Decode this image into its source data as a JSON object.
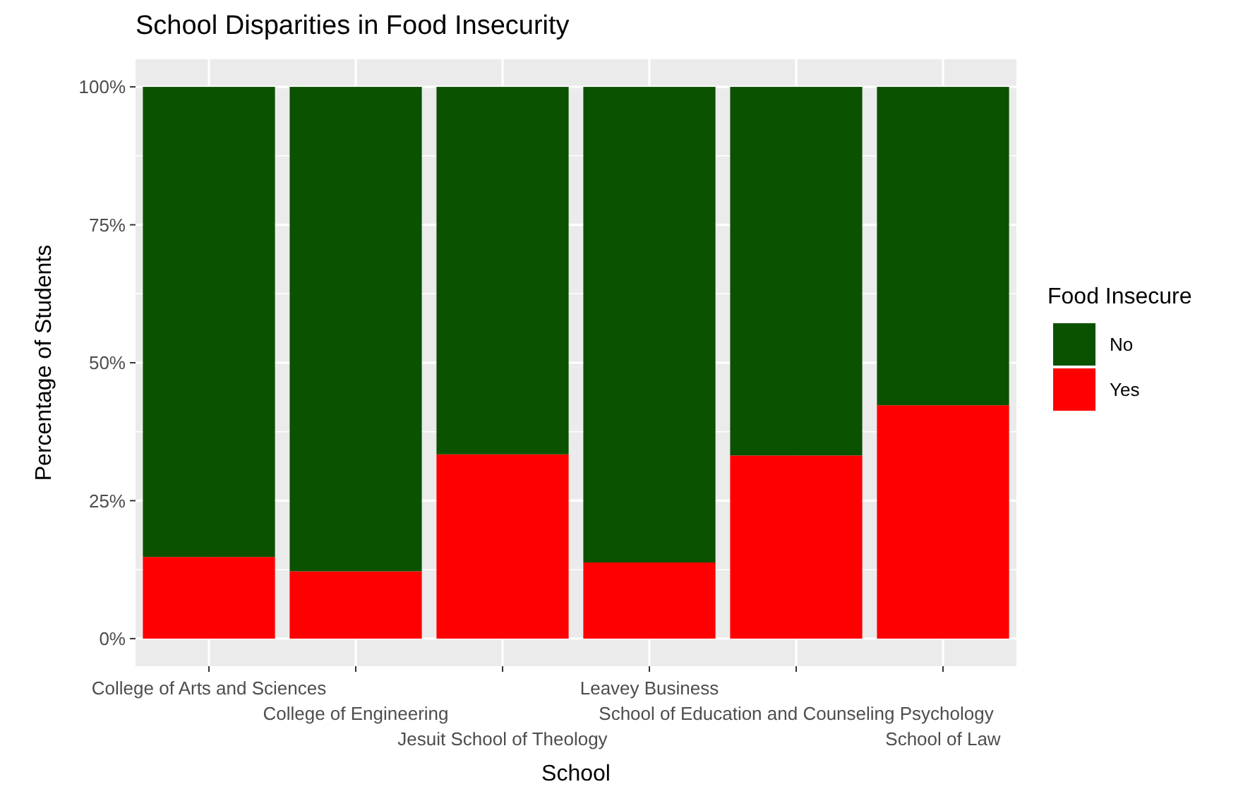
{
  "chart_data": {
    "type": "bar",
    "title": "School Disparities in Food Insecurity",
    "xlabel": "School",
    "ylabel": "Percentage of Students",
    "legend_title": "Food Insecure",
    "categories": [
      "College of Arts and Sciences",
      "College of Engineering",
      "Jesuit School of Theology",
      "Leavey Business",
      "School of Education and Counseling Psychology",
      "School of Law"
    ],
    "stacked": true,
    "series": [
      {
        "name": "Yes",
        "color": "#ff0000",
        "values": [
          14.8,
          12.2,
          33.4,
          13.8,
          33.2,
          42.3
        ]
      },
      {
        "name": "No",
        "color": "#0b5200",
        "values": [
          85.2,
          87.8,
          66.6,
          86.2,
          66.8,
          57.7
        ]
      }
    ],
    "ylim": [
      -5,
      105
    ],
    "yticks": [
      {
        "value": 0,
        "label": "0%"
      },
      {
        "value": 25,
        "label": "25%"
      },
      {
        "value": 50,
        "label": "50%"
      },
      {
        "value": 75,
        "label": "75%"
      },
      {
        "value": 100,
        "label": "100%"
      }
    ],
    "grid": true,
    "legend": "right"
  }
}
